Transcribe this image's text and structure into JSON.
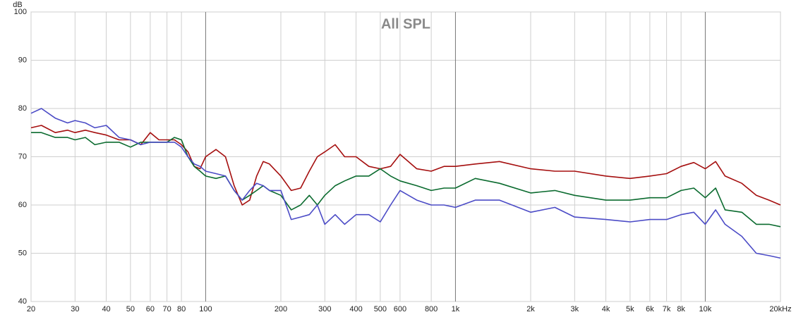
{
  "chart_data": {
    "type": "line",
    "title": "All SPL",
    "y_label": "dB",
    "xscale": "log",
    "grid": true,
    "x": [
      20,
      22,
      25,
      28,
      30,
      33,
      36,
      40,
      45,
      50,
      55,
      60,
      65,
      70,
      75,
      80,
      85,
      90,
      95,
      100,
      110,
      120,
      130,
      140,
      150,
      160,
      170,
      180,
      200,
      220,
      240,
      260,
      280,
      300,
      330,
      360,
      400,
      450,
      500,
      550,
      600,
      700,
      800,
      900,
      1000,
      1200,
      1500,
      2000,
      2500,
      3000,
      4000,
      5000,
      6000,
      7000,
      8000,
      9000,
      10000,
      11000,
      12000,
      14000,
      16000,
      18000,
      20000
    ],
    "series": [
      {
        "color": "#a50f0f",
        "values": [
          76,
          76.5,
          75,
          75.5,
          75,
          75.5,
          75,
          74.5,
          73.5,
          73.5,
          72.5,
          75,
          73.5,
          73.5,
          73.5,
          72.5,
          71,
          68,
          67.5,
          70,
          71.5,
          70,
          64,
          60,
          61,
          66,
          69,
          68.5,
          66,
          63,
          63.5,
          67,
          70,
          71,
          72.5,
          70,
          70,
          68,
          67.5,
          68,
          70.5,
          67.5,
          67,
          68,
          68,
          68.5,
          69,
          67.5,
          67,
          67,
          66,
          65.5,
          66,
          66.5,
          68,
          68.8,
          67.5,
          69,
          66,
          64.5,
          62,
          61,
          60
        ]
      },
      {
        "color": "#0b6b2f",
        "values": [
          75,
          75,
          74,
          74,
          73.5,
          74,
          72.5,
          73,
          73,
          72,
          73,
          73,
          73,
          73,
          74,
          73.5,
          70,
          68,
          67,
          66,
          65.5,
          66,
          63,
          61,
          62,
          63,
          64,
          63,
          62,
          59,
          60,
          62,
          60,
          62,
          64,
          65,
          66,
          66,
          67.5,
          66,
          65,
          64,
          63,
          63.5,
          63.5,
          65.5,
          64.5,
          62.5,
          63,
          62,
          61,
          61,
          61.5,
          61.5,
          63,
          63.5,
          61.5,
          63.5,
          59,
          58.5,
          56,
          56,
          55.5
        ]
      },
      {
        "color": "#4b4bc6",
        "values": [
          79,
          80,
          78,
          77,
          77.5,
          77,
          76,
          76.5,
          74,
          73.5,
          72.5,
          73,
          73,
          73,
          73,
          72,
          70,
          68.5,
          68,
          67,
          66.5,
          66,
          63,
          61,
          63,
          64.5,
          64,
          63,
          63,
          57,
          57.5,
          58,
          60,
          56,
          58,
          56,
          58,
          58,
          56.5,
          60,
          63,
          61,
          60,
          60,
          59.5,
          61,
          61,
          58.5,
          59.5,
          57.5,
          57,
          56.5,
          57,
          57,
          58,
          58.5,
          56,
          59,
          56,
          53.5,
          50,
          49.5,
          49
        ]
      }
    ],
    "xlim": [
      20,
      20000
    ],
    "ylim": [
      40,
      100
    ],
    "xticks": [
      20,
      30,
      40,
      50,
      60,
      70,
      80,
      100,
      200,
      300,
      400,
      500,
      600,
      800,
      {
        "value": 1000,
        "label": "1k"
      },
      {
        "value": 2000,
        "label": "2k"
      },
      {
        "value": 3000,
        "label": "3k"
      },
      {
        "value": 4000,
        "label": "4k"
      },
      {
        "value": 5000,
        "label": "5k"
      },
      {
        "value": 6000,
        "label": "6k"
      },
      {
        "value": 7000,
        "label": "7k"
      },
      {
        "value": 8000,
        "label": "8k"
      },
      {
        "value": 10000,
        "label": "10k"
      },
      {
        "value": 20000,
        "label": "20kHz"
      }
    ],
    "yticks": [
      40,
      50,
      60,
      70,
      80,
      90,
      100
    ]
  }
}
